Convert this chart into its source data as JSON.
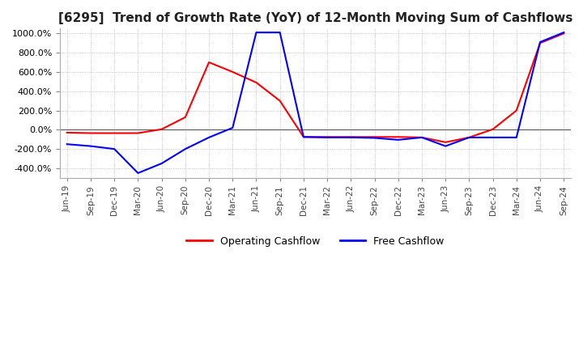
{
  "title": "[6295]  Trend of Growth Rate (YoY) of 12-Month Moving Sum of Cashflows",
  "title_fontsize": 11,
  "ylim": [
    -500,
    1050
  ],
  "yticks": [
    -400,
    -200,
    0,
    200,
    400,
    600,
    800,
    1000
  ],
  "background_color": "#ffffff",
  "grid_color": "#b0b0b0",
  "x_labels": [
    "Jun-19",
    "Sep-19",
    "Dec-19",
    "Mar-20",
    "Jun-20",
    "Sep-20",
    "Dec-20",
    "Mar-21",
    "Jun-21",
    "Sep-21",
    "Dec-21",
    "Mar-22",
    "Jun-22",
    "Sep-22",
    "Dec-22",
    "Mar-23",
    "Jun-23",
    "Sep-23",
    "Dec-23",
    "Mar-24",
    "Jun-24",
    "Sep-24"
  ],
  "operating_cashflow": [
    -30,
    -35,
    -35,
    -35,
    5,
    130,
    700,
    600,
    490,
    300,
    -75,
    -75,
    -75,
    -75,
    -75,
    -80,
    -130,
    -80,
    5,
    200,
    900,
    1000
  ],
  "free_cashflow": [
    -150,
    -170,
    -200,
    -450,
    -350,
    -200,
    -80,
    20,
    1010,
    1010,
    -75,
    -80,
    -80,
    -85,
    -105,
    -80,
    -170,
    -80,
    -80,
    -80,
    910,
    1010
  ],
  "op_color": "#ff0000",
  "fc_color": "#0000ff",
  "legend_op": "Operating Cashflow",
  "legend_fc": "Free Cashflow"
}
